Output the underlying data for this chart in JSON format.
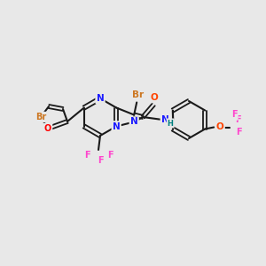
{
  "background_color": "#e8e8e8",
  "atom_colors": {
    "Br": "#cc7722",
    "O": "#ff0000",
    "N": "#1a1aff",
    "NH": "#008080",
    "H": "#008080",
    "F": "#ff44cc",
    "O_amide": "#ff4400",
    "O_ether": "#ff4400"
  },
  "figsize": [
    3.0,
    3.0
  ],
  "dpi": 100
}
